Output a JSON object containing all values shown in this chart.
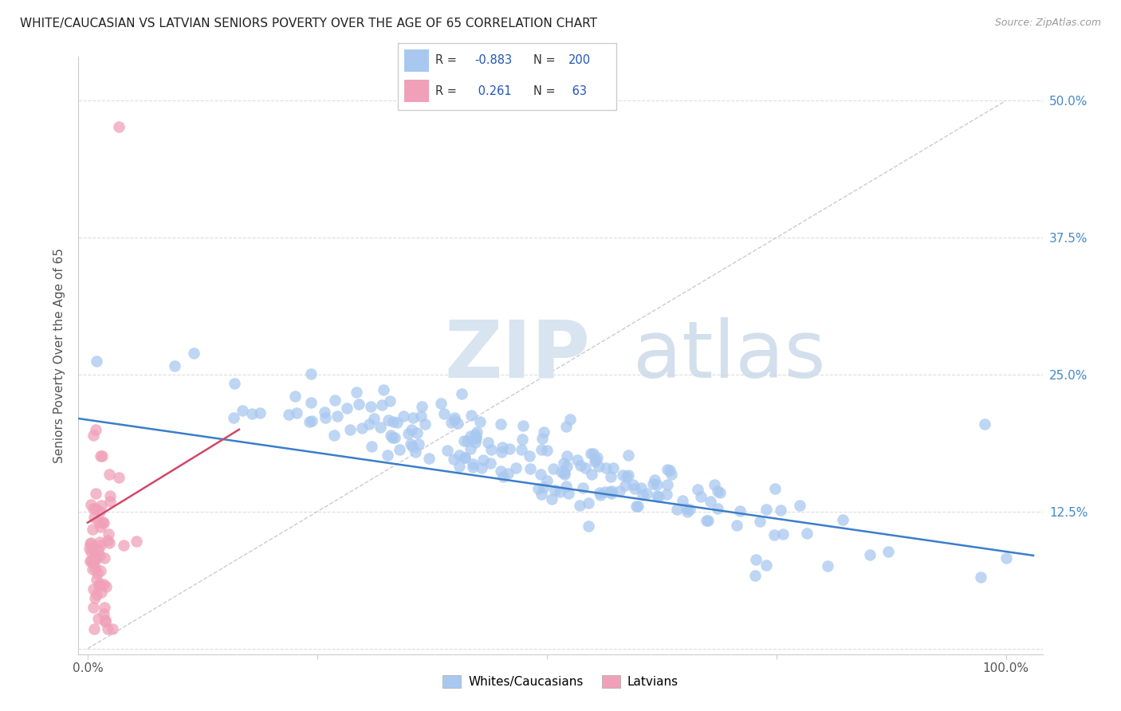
{
  "title": "WHITE/CAUCASIAN VS LATVIAN SENIORS POVERTY OVER THE AGE OF 65 CORRELATION CHART",
  "source": "Source: ZipAtlas.com",
  "ylabel": "Seniors Poverty Over the Age of 65",
  "blue_R": -0.883,
  "blue_N": 200,
  "pink_R": 0.261,
  "pink_N": 63,
  "blue_color": "#A8C8F0",
  "pink_color": "#F0A0B8",
  "blue_line_color": "#3B7EC8",
  "pink_line_color": "#D04868",
  "grid_color": "#dddddd",
  "title_fontsize": 11,
  "source_fontsize": 9,
  "legend_label_blue": "Whites/Caucasians",
  "legend_label_pink": "Latvians",
  "xlim": [
    -0.01,
    1.04
  ],
  "ylim": [
    -0.005,
    0.54
  ]
}
